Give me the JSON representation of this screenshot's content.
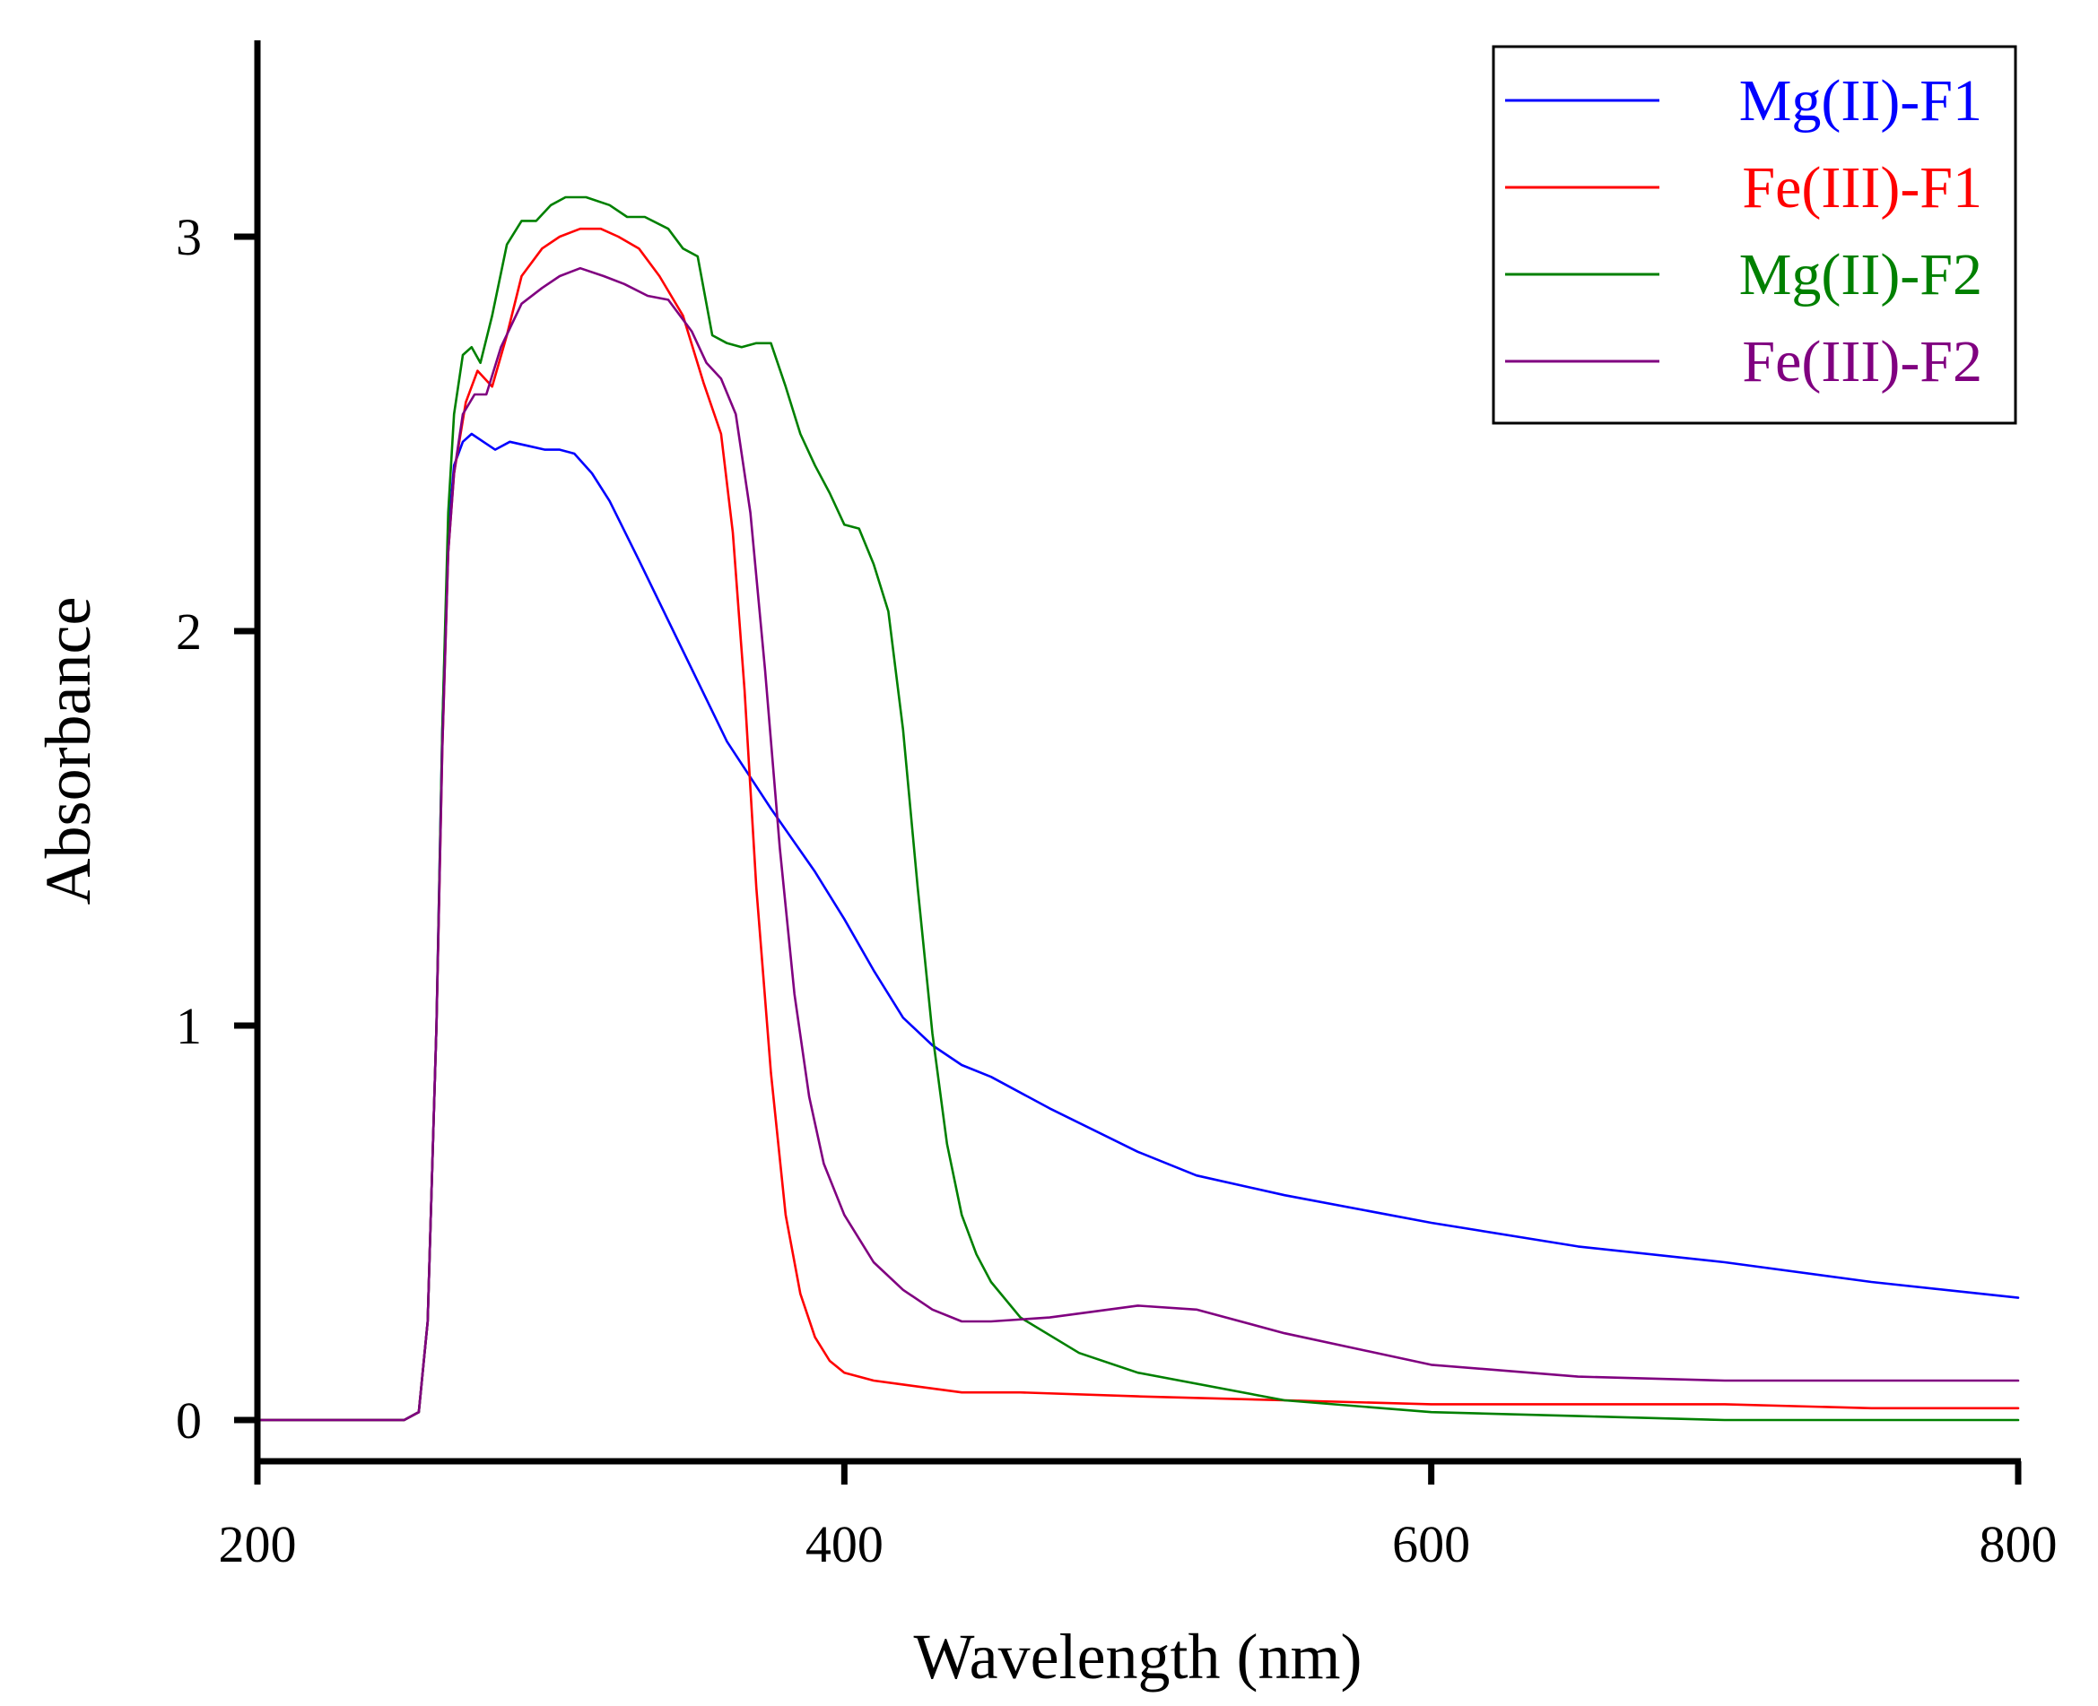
{
  "chart_data": {
    "type": "line",
    "title": "",
    "xlabel": "Wavelength (nm)",
    "ylabel": "Absorbance",
    "xlim": [
      200,
      800
    ],
    "ylim": [
      -0.12,
      3.5
    ],
    "xticks": [
      200,
      400,
      600,
      800
    ],
    "yticks": [
      0,
      1,
      2,
      3
    ],
    "grid": false,
    "legend_position": "top-right",
    "series": [
      {
        "name": "Mg(II)-F1",
        "color": "#0000ff",
        "x": [
          200,
          250,
          255,
          258,
          261,
          263,
          265,
          267,
          270,
          273,
          277,
          281,
          286,
          292,
          298,
          303,
          308,
          314,
          320,
          330,
          345,
          360,
          375,
          390,
          400,
          410,
          420,
          430,
          440,
          450,
          470,
          500,
          520,
          550,
          600,
          650,
          700,
          750,
          800
        ],
        "y": [
          0.0,
          0.0,
          0.02,
          0.25,
          1.0,
          1.75,
          2.25,
          2.42,
          2.48,
          2.5,
          2.48,
          2.46,
          2.48,
          2.47,
          2.46,
          2.46,
          2.45,
          2.4,
          2.33,
          2.18,
          1.95,
          1.72,
          1.55,
          1.39,
          1.27,
          1.14,
          1.02,
          0.95,
          0.9,
          0.87,
          0.79,
          0.68,
          0.62,
          0.57,
          0.5,
          0.44,
          0.4,
          0.35,
          0.31
        ]
      },
      {
        "name": "Fe(III)-F1",
        "color": "#ff0000",
        "x": [
          200,
          250,
          255,
          258,
          261,
          263,
          265,
          267,
          271,
          275,
          280,
          285,
          290,
          297,
          303,
          310,
          317,
          323,
          330,
          337,
          345,
          352,
          358,
          362,
          366,
          370,
          375,
          380,
          385,
          390,
          395,
          400,
          405,
          410,
          420,
          440,
          460,
          500,
          550,
          600,
          650,
          700,
          750,
          800
        ],
        "y": [
          0.0,
          0.0,
          0.02,
          0.25,
          1.0,
          1.7,
          2.2,
          2.4,
          2.58,
          2.66,
          2.62,
          2.75,
          2.9,
          2.97,
          3.0,
          3.02,
          3.02,
          3.0,
          2.97,
          2.9,
          2.8,
          2.63,
          2.5,
          2.25,
          1.85,
          1.35,
          0.88,
          0.52,
          0.32,
          0.21,
          0.15,
          0.12,
          0.11,
          0.1,
          0.09,
          0.07,
          0.07,
          0.06,
          0.05,
          0.04,
          0.04,
          0.04,
          0.03,
          0.03
        ]
      },
      {
        "name": "Mg(II)-F2",
        "color": "#008000",
        "x": [
          200,
          250,
          255,
          258,
          261,
          263,
          265,
          267,
          270,
          273,
          276,
          280,
          285,
          290,
          295,
          300,
          305,
          312,
          320,
          326,
          332,
          340,
          345,
          350,
          355,
          360,
          365,
          370,
          375,
          380,
          385,
          390,
          395,
          400,
          405,
          410,
          415,
          420,
          425,
          430,
          435,
          440,
          445,
          450,
          460,
          480,
          500,
          550,
          600,
          650,
          700,
          750,
          800
        ],
        "y": [
          0.0,
          0.0,
          0.02,
          0.25,
          1.0,
          1.75,
          2.3,
          2.55,
          2.7,
          2.72,
          2.68,
          2.8,
          2.98,
          3.04,
          3.04,
          3.08,
          3.1,
          3.1,
          3.08,
          3.05,
          3.05,
          3.02,
          2.97,
          2.95,
          2.75,
          2.73,
          2.72,
          2.73,
          2.73,
          2.62,
          2.5,
          2.42,
          2.35,
          2.27,
          2.26,
          2.17,
          2.05,
          1.75,
          1.35,
          0.98,
          0.7,
          0.52,
          0.42,
          0.35,
          0.26,
          0.17,
          0.12,
          0.05,
          0.02,
          0.01,
          0.0,
          0.0,
          0.0
        ]
      },
      {
        "name": "Fe(III)-F2",
        "color": "#800080",
        "x": [
          200,
          250,
          255,
          258,
          261,
          263,
          265,
          267,
          270,
          274,
          278,
          283,
          290,
          297,
          303,
          310,
          318,
          325,
          333,
          340,
          348,
          353,
          358,
          363,
          368,
          373,
          378,
          383,
          388,
          393,
          400,
          410,
          420,
          430,
          440,
          450,
          470,
          500,
          520,
          550,
          600,
          650,
          700,
          750,
          800
        ],
        "y": [
          0.0,
          0.0,
          0.02,
          0.25,
          1.0,
          1.7,
          2.2,
          2.4,
          2.55,
          2.6,
          2.6,
          2.72,
          2.83,
          2.87,
          2.9,
          2.92,
          2.9,
          2.88,
          2.85,
          2.84,
          2.76,
          2.68,
          2.64,
          2.55,
          2.3,
          1.9,
          1.45,
          1.08,
          0.82,
          0.65,
          0.52,
          0.4,
          0.33,
          0.28,
          0.25,
          0.25,
          0.26,
          0.29,
          0.28,
          0.22,
          0.14,
          0.11,
          0.1,
          0.1,
          0.1
        ]
      }
    ]
  }
}
